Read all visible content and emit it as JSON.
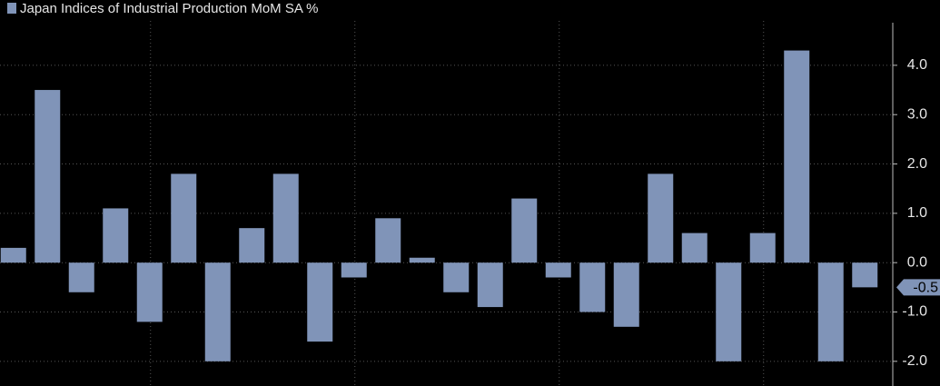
{
  "chart_data": {
    "type": "bar",
    "categories": [
      null,
      null,
      null,
      null,
      null,
      null,
      null,
      null,
      null,
      null,
      null,
      null,
      null,
      null,
      null,
      null,
      null,
      null,
      null,
      null,
      null,
      null,
      null,
      null,
      null,
      null
    ],
    "series": [
      {
        "name": "Japan Indices of Industrial Production MoM SA %",
        "color": "#8094b8",
        "values": [
          0.3,
          3.5,
          -0.6,
          1.1,
          -1.2,
          1.8,
          -2.0,
          0.7,
          1.8,
          -1.6,
          -0.3,
          0.9,
          0.1,
          -0.6,
          -0.9,
          1.3,
          -0.3,
          -1.0,
          -1.3,
          1.8,
          0.6,
          -2.0,
          0.6,
          4.3,
          -2.0,
          -0.5
        ]
      }
    ],
    "last_value_label": "-0.5",
    "ylim": [
      -2.5,
      4.9
    ],
    "yticks": [
      {
        "value": -2,
        "label": "-2.0"
      },
      {
        "value": -1,
        "label": "-1.0"
      },
      {
        "value": 0,
        "label": "0.0"
      },
      {
        "value": 1,
        "label": "1.0"
      },
      {
        "value": 2,
        "label": "2.0"
      },
      {
        "value": 3,
        "label": "3.0"
      },
      {
        "value": 4,
        "label": "4.0"
      }
    ],
    "grid": true
  }
}
